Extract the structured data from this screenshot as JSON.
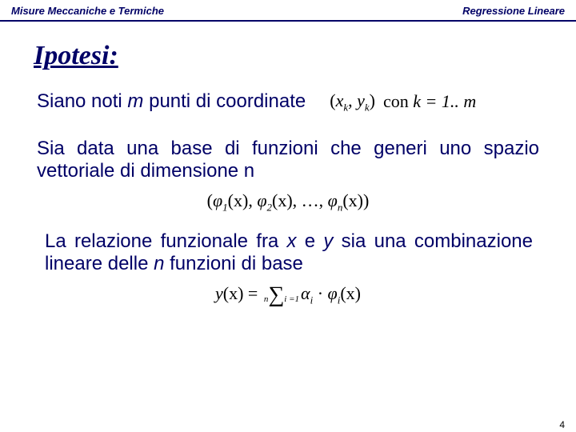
{
  "header": {
    "left": "Misure Meccaniche e Termiche",
    "right": "Regressione Lineare"
  },
  "title": "Ipotesi:",
  "para1": {
    "prefix": "Siano noti ",
    "m": "m",
    "suffix": " punti di coordinate"
  },
  "formula1": {
    "lparen": "(",
    "xk": "x",
    "xk_sub": "k",
    "comma": ", ",
    "yk": "y",
    "yk_sub": "k",
    "rparen": ")",
    "con": "  con ",
    "k_eq": "k = 1.. ",
    "m": "m"
  },
  "para2": "Sia data una base di funzioni che generi uno spazio vettoriale di dimensione n",
  "formula2": {
    "lparen": "(",
    "phi": "φ",
    "one": "1",
    "x": "(x)",
    "sep": ", ",
    "two": "2",
    "dots": " …, ",
    "n": "n",
    "rparen": ")"
  },
  "para3": {
    "t1": "La relazione funzionale fra ",
    "x": "x",
    "t2": " e ",
    "y": "y",
    "t3": " sia una combinazione lineare delle ",
    "n": "n",
    "t4": " funzioni di base"
  },
  "formula3": {
    "lhs_y": "y",
    "lhs_x": "(x)",
    "eq": " = ",
    "sum_top": "n",
    "sum_bot": "i =1",
    "alpha": "α",
    "i": "i",
    "dot": " · ",
    "phi": "φ",
    "x": "(x)"
  },
  "colors": {
    "accent": "#000066",
    "bg": "#ffffff",
    "text_math": "#000000"
  },
  "page_number": "4"
}
